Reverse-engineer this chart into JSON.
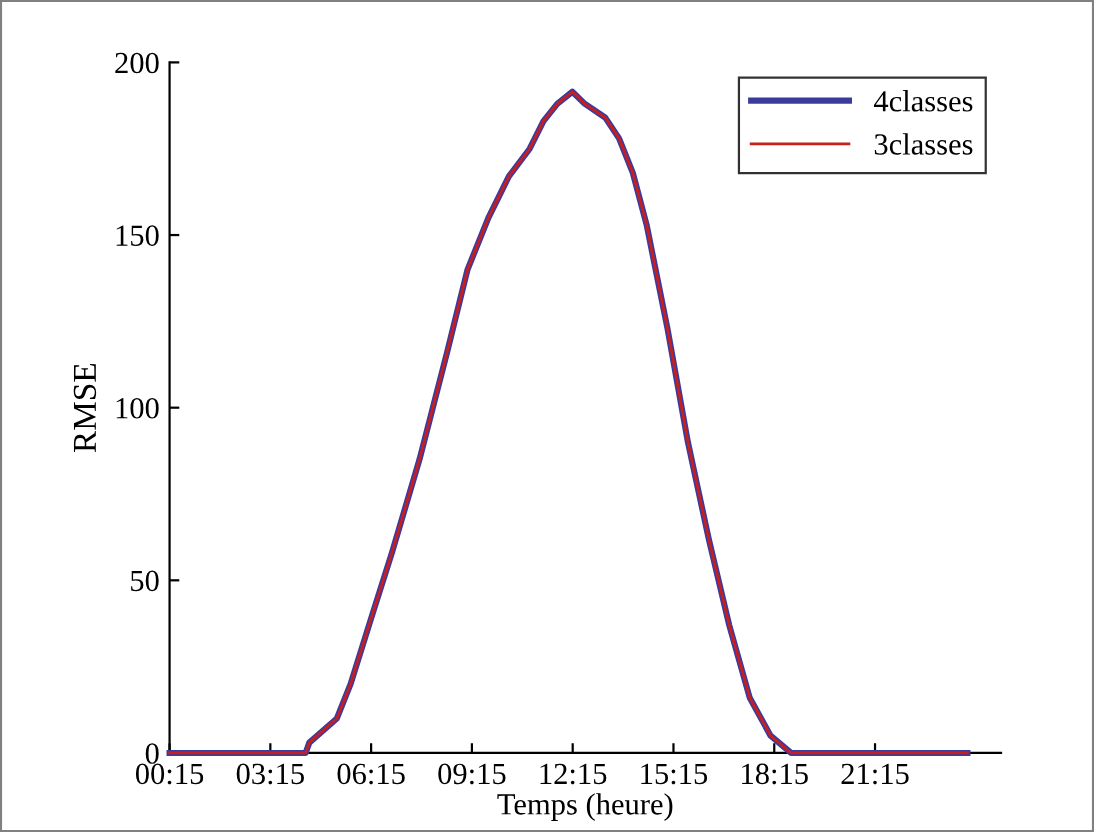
{
  "chart_data": {
    "type": "line",
    "xlabel": "Temps (heure)",
    "ylabel": "RMSE",
    "x": [
      0.25,
      2,
      4,
      4.3,
      4.41,
      5.23,
      5.64,
      6.25,
      6.87,
      7.69,
      8.51,
      9.12,
      9.74,
      10.35,
      10.97,
      11.38,
      11.79,
      12.24,
      12.61,
      13.22,
      13.63,
      14.04,
      14.45,
      15.07,
      15.68,
      16.3,
      16.91,
      17.52,
      18.14,
      18.75,
      20,
      22,
      24
    ],
    "series": [
      {
        "name": "4classes",
        "color": "#3b3b9e",
        "values": [
          0,
          0,
          0,
          0,
          3,
          10,
          20,
          39,
          58,
          85,
          116,
          140,
          155,
          167,
          175,
          183,
          188,
          191.5,
          188,
          184,
          178,
          168,
          153,
          123,
          90,
          62,
          37,
          16,
          5,
          0,
          0,
          0,
          0
        ]
      },
      {
        "name": "3classes",
        "color": "#c81e1e",
        "values": [
          0,
          0,
          0,
          0,
          3,
          10,
          20,
          39,
          58,
          85,
          116,
          140,
          155,
          167,
          175,
          183,
          188,
          191.5,
          188,
          184,
          178,
          168,
          153,
          123,
          90,
          62,
          37,
          16,
          5,
          0,
          0,
          0,
          0
        ]
      }
    ],
    "xlim": [
      0.25,
      25.0
    ],
    "xticks": [
      {
        "value": 0.25,
        "label": "00:15"
      },
      {
        "value": 3.25,
        "label": "03:15"
      },
      {
        "value": 6.25,
        "label": "06:15"
      },
      {
        "value": 9.25,
        "label": "09:15"
      },
      {
        "value": 12.25,
        "label": "12:15"
      },
      {
        "value": 15.25,
        "label": "15:15"
      },
      {
        "value": 18.25,
        "label": "18:15"
      },
      {
        "value": 21.25,
        "label": "21:15"
      }
    ],
    "ylim": [
      0,
      200
    ],
    "yticks": [
      0,
      50,
      100,
      150,
      200
    ],
    "legend": "top right",
    "grid": false
  }
}
